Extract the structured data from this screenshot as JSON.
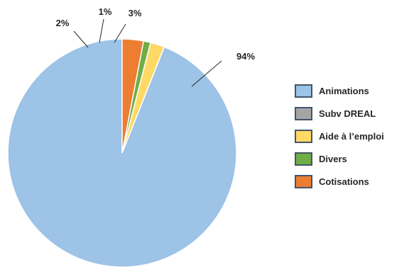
{
  "chart_data": {
    "type": "pie",
    "title": "",
    "slices": [
      {
        "name": "Animations",
        "value": 94,
        "label": "94%",
        "color": "#9DC3E6"
      },
      {
        "name": "Subv DREAL",
        "value": 0,
        "label": "",
        "color": "#A5A5A5"
      },
      {
        "name": "Aide à l’emploi",
        "value": 2,
        "label": "2%",
        "color": "#FFD966"
      },
      {
        "name": "Divers",
        "value": 1,
        "label": "1%",
        "color": "#70AD47"
      },
      {
        "name": "Cotisations",
        "value": 3,
        "label": "3%",
        "color": "#ED7D31"
      }
    ],
    "legend": {
      "placement": "right",
      "items": [
        "Animations",
        "Subv DREAL",
        "Aide à l’emploi",
        "Divers",
        "Cotisations"
      ]
    },
    "slice_border_color": "#FFFFFF",
    "leader_line_color": "#262626",
    "legend_border_color": "#44546A"
  }
}
